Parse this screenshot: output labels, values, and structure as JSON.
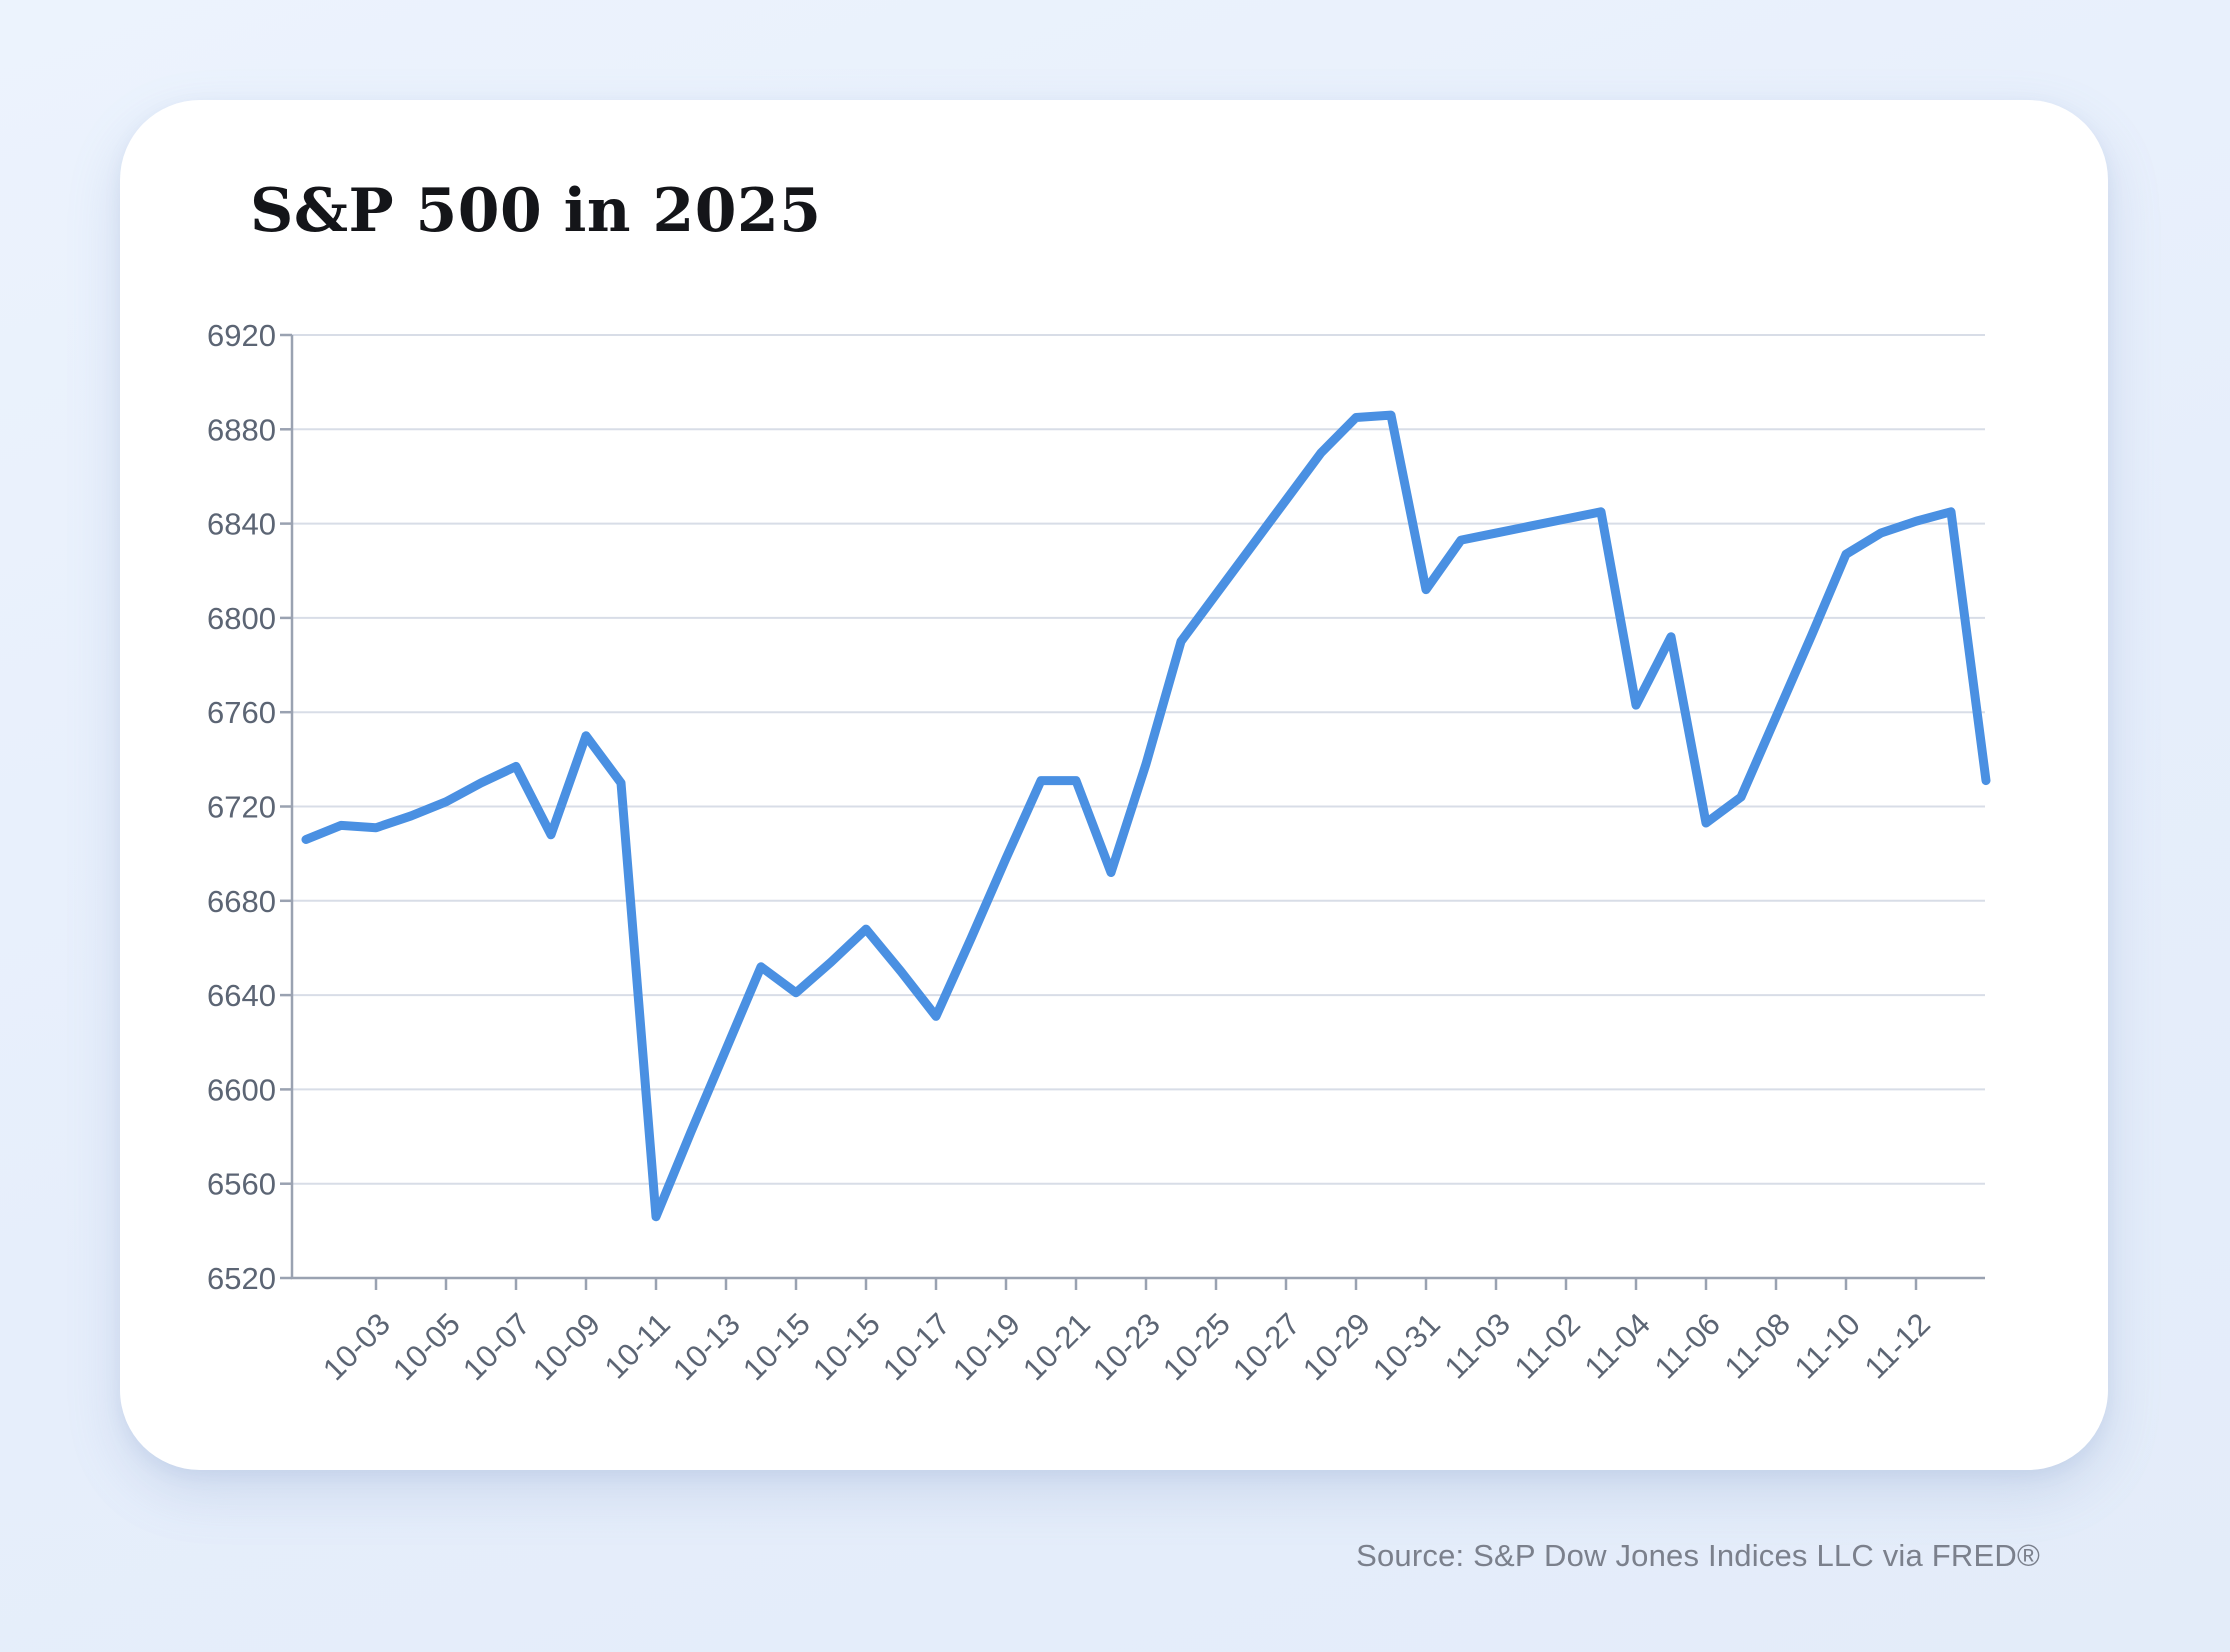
{
  "title": "S&P 500 in 2025",
  "source_note": "Source: S&P Dow Jones Indices LLC via FRED®",
  "colors": {
    "line": "#4a90e2",
    "grid": "#d8dde7",
    "axis": "#9aa2b1",
    "tick_label": "#5c6574",
    "title_text": "#141519",
    "card_bg": "#ffffff",
    "page_bg": "#e8effb",
    "source_text": "#7b808c"
  },
  "chart_data": {
    "type": "line",
    "title": "S&P 500 in 2025",
    "xlabel": "",
    "ylabel": "",
    "ylim": [
      6520,
      6920
    ],
    "y_ticks": [
      6520,
      6560,
      6600,
      6640,
      6680,
      6720,
      6760,
      6800,
      6840,
      6880,
      6920
    ],
    "grid": "horizontal",
    "legend_position": "none",
    "x_tick_labels": [
      "10-03",
      "10-05",
      "10-07",
      "10-09",
      "10-11",
      "10-13",
      "10-15",
      "10-15",
      "10-17",
      "10-19",
      "10-21",
      "10-23",
      "10-25",
      "10-27",
      "10-29",
      "10-31",
      "11-03",
      "11-02",
      "11-04",
      "11-06",
      "11-08",
      "11-10",
      "11-12"
    ],
    "first_tick_index": 2,
    "tick_every": 2,
    "values": [
      6706,
      6712,
      6711,
      6716,
      6722,
      6730,
      6737,
      6708,
      6750,
      6730,
      6546,
      6582,
      6617,
      6652,
      6641,
      6654,
      6668,
      6650,
      6631,
      6664,
      6698,
      6731,
      6731,
      6692,
      6738,
      6790,
      6810,
      6830,
      6850,
      6870,
      6885,
      6886,
      6812,
      6833,
      6836,
      6839,
      6842,
      6845,
      6763,
      6792,
      6713,
      6724,
      6758,
      6792,
      6827,
      6836,
      6841,
      6845,
      6731
    ],
    "source": "Source: S&P Dow Jones Indices LLC via FRED®"
  }
}
